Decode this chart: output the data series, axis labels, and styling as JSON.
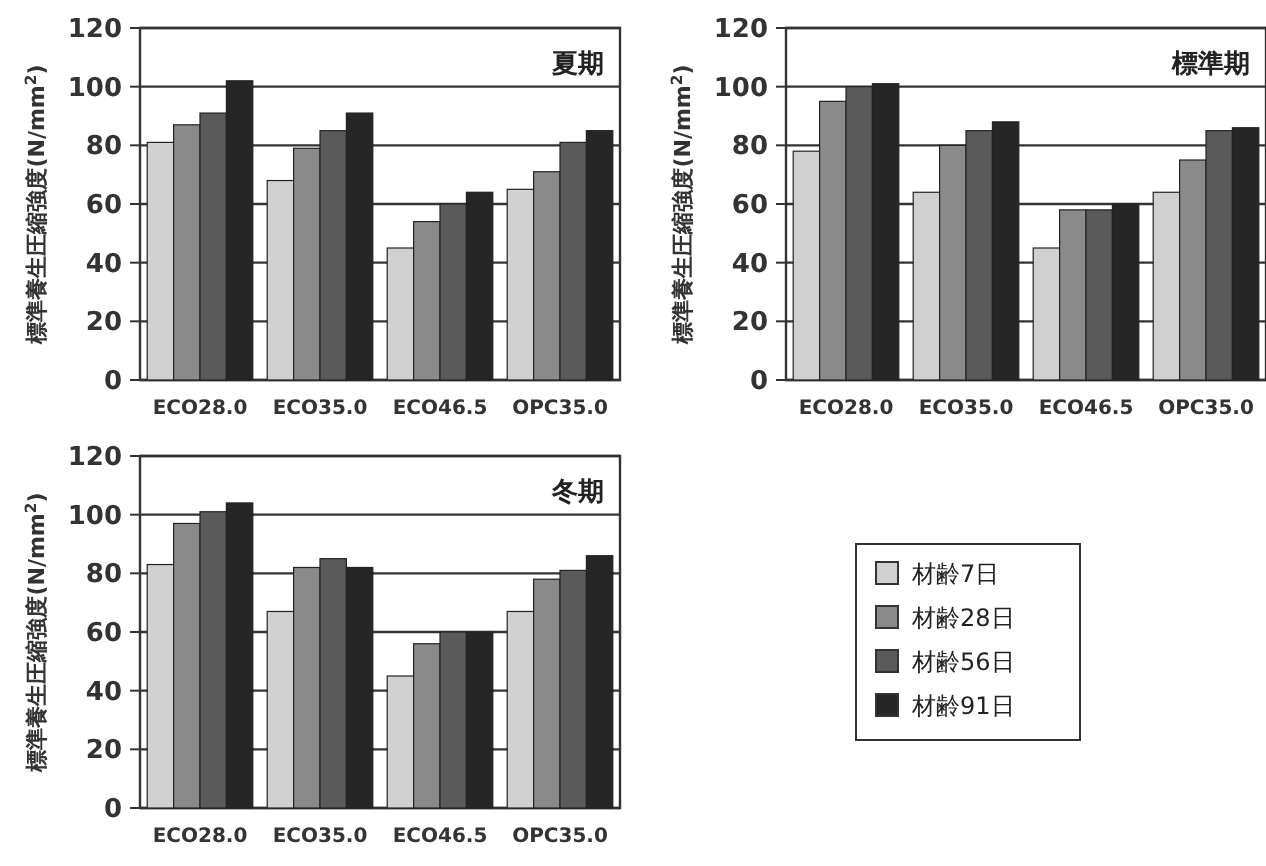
{
  "chart_data": [
    {
      "type": "bar",
      "title": "夏期",
      "ylabel": "標準養生圧縮強度(N/mm$^{2}$)",
      "categories": [
        "ECO28.0",
        "ECO35.0",
        "ECO46.5",
        "OPC35.0"
      ],
      "ylim": [
        0,
        120
      ],
      "yticks": [
        0,
        20,
        40,
        60,
        80,
        100,
        120
      ],
      "grid": "y",
      "series": [
        {
          "color": "#d0d0d0",
          "values": [
            81,
            68,
            45,
            65
          ]
        },
        {
          "color": "#8a8a8a",
          "values": [
            87,
            79,
            54,
            71
          ]
        },
        {
          "color": "#5a5a5a",
          "values": [
            91,
            85,
            60,
            81
          ]
        },
        {
          "color": "#262626",
          "values": [
            102,
            91,
            64,
            85
          ]
        }
      ]
    },
    {
      "type": "bar",
      "title": "標準期",
      "ylabel": "標準養生圧縮強度(N/mm$^{2}$)",
      "categories": [
        "ECO28.0",
        "ECO35.0",
        "ECO46.5",
        "OPC35.0"
      ],
      "ylim": [
        0,
        120
      ],
      "yticks": [
        0,
        20,
        40,
        60,
        80,
        100,
        120
      ],
      "grid": "y",
      "series": [
        {
          "color": "#d0d0d0",
          "values": [
            78,
            64,
            45,
            64
          ]
        },
        {
          "color": "#8a8a8a",
          "values": [
            95,
            80,
            58,
            75
          ]
        },
        {
          "color": "#5a5a5a",
          "values": [
            100,
            85,
            58,
            85
          ]
        },
        {
          "color": "#262626",
          "values": [
            101,
            88,
            60,
            86
          ]
        }
      ]
    },
    {
      "type": "bar",
      "title": "冬期",
      "ylabel": "標準養生圧縮強度(N/mm$^{2}$)",
      "categories": [
        "ECO28.0",
        "ECO35.0",
        "ECO46.5",
        "OPC35.0"
      ],
      "ylim": [
        0,
        120
      ],
      "yticks": [
        0,
        20,
        40,
        60,
        80,
        100,
        120
      ],
      "grid": "y",
      "legend": "right",
      "series": [
        {
          "name": "材齢7日",
          "color": "#d0d0d0",
          "values": [
            83,
            67,
            45,
            67
          ]
        },
        {
          "name": "材齢28日",
          "color": "#8a8a8a",
          "values": [
            97,
            82,
            56,
            78
          ]
        },
        {
          "name": "材齢56日",
          "color": "#5a5a5a",
          "values": [
            101,
            85,
            60,
            81
          ]
        },
        {
          "name": "材齢91日",
          "color": "#262626",
          "values": [
            104,
            82,
            60,
            86
          ]
        }
      ]
    }
  ]
}
